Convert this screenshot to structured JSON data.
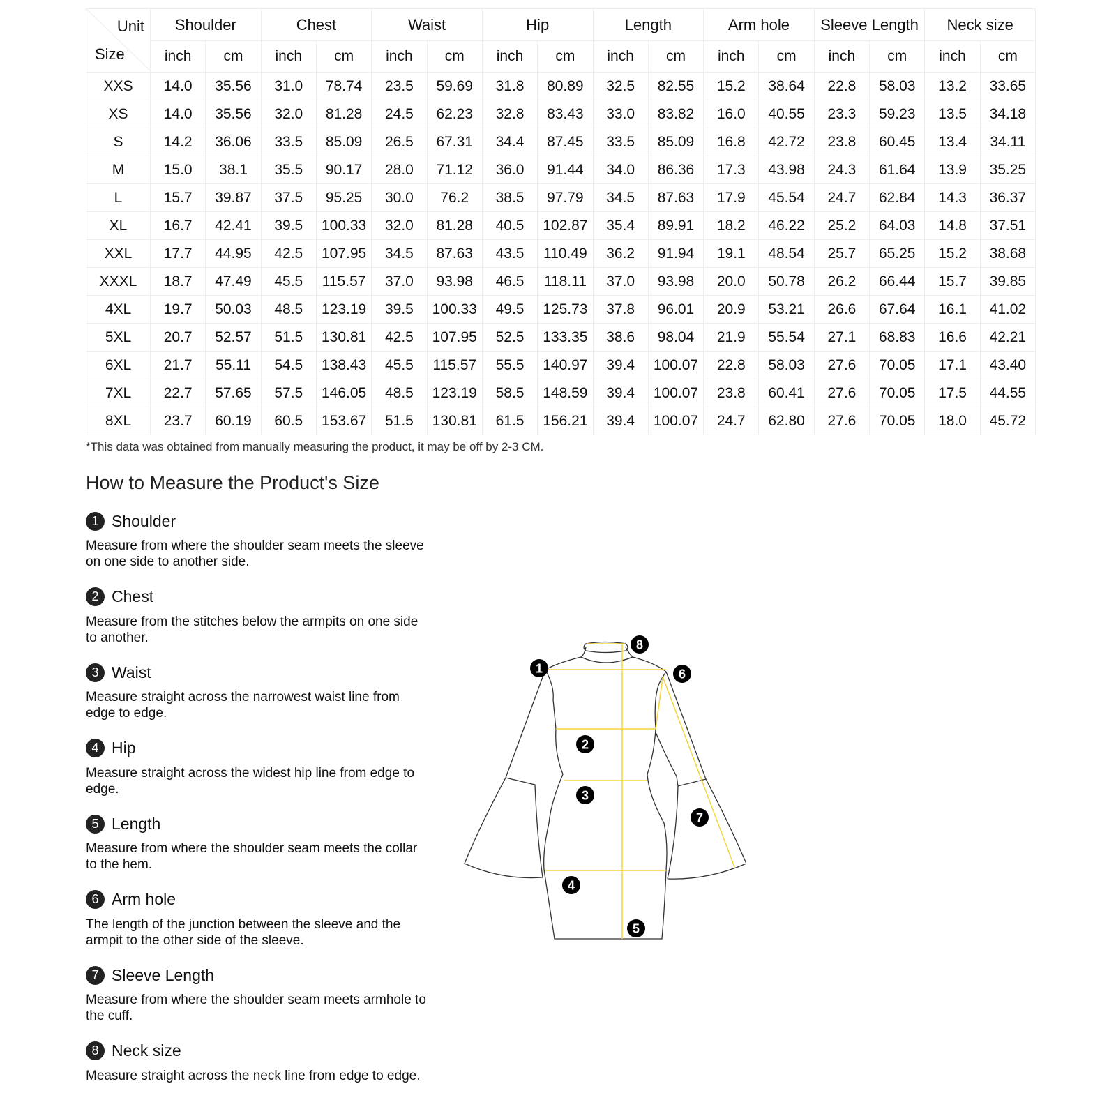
{
  "table": {
    "corner_unit": "Unit",
    "corner_size": "Size",
    "groups": [
      "Shoulder",
      "Chest",
      "Waist",
      "Hip",
      "Length",
      "Arm hole",
      "Sleeve Length",
      "Neck size"
    ],
    "units": [
      "inch",
      "cm"
    ],
    "rows": [
      [
        "XXS",
        "14.0",
        "35.56",
        "31.0",
        "78.74",
        "23.5",
        "59.69",
        "31.8",
        "80.89",
        "32.5",
        "82.55",
        "15.2",
        "38.64",
        "22.8",
        "58.03",
        "13.2",
        "33.65"
      ],
      [
        "XS",
        "14.0",
        "35.56",
        "32.0",
        "81.28",
        "24.5",
        "62.23",
        "32.8",
        "83.43",
        "33.0",
        "83.82",
        "16.0",
        "40.55",
        "23.3",
        "59.23",
        "13.5",
        "34.18"
      ],
      [
        "S",
        "14.2",
        "36.06",
        "33.5",
        "85.09",
        "26.5",
        "67.31",
        "34.4",
        "87.45",
        "33.5",
        "85.09",
        "16.8",
        "42.72",
        "23.8",
        "60.45",
        "13.4",
        "34.11"
      ],
      [
        "M",
        "15.0",
        "38.1",
        "35.5",
        "90.17",
        "28.0",
        "71.12",
        "36.0",
        "91.44",
        "34.0",
        "86.36",
        "17.3",
        "43.98",
        "24.3",
        "61.64",
        "13.9",
        "35.25"
      ],
      [
        "L",
        "15.7",
        "39.87",
        "37.5",
        "95.25",
        "30.0",
        "76.2",
        "38.5",
        "97.79",
        "34.5",
        "87.63",
        "17.9",
        "45.54",
        "24.7",
        "62.84",
        "14.3",
        "36.37"
      ],
      [
        "XL",
        "16.7",
        "42.41",
        "39.5",
        "100.33",
        "32.0",
        "81.28",
        "40.5",
        "102.87",
        "35.4",
        "89.91",
        "18.2",
        "46.22",
        "25.2",
        "64.03",
        "14.8",
        "37.51"
      ],
      [
        "XXL",
        "17.7",
        "44.95",
        "42.5",
        "107.95",
        "34.5",
        "87.63",
        "43.5",
        "110.49",
        "36.2",
        "91.94",
        "19.1",
        "48.54",
        "25.7",
        "65.25",
        "15.2",
        "38.68"
      ],
      [
        "XXXL",
        "18.7",
        "47.49",
        "45.5",
        "115.57",
        "37.0",
        "93.98",
        "46.5",
        "118.11",
        "37.0",
        "93.98",
        "20.0",
        "50.78",
        "26.2",
        "66.44",
        "15.7",
        "39.85"
      ],
      [
        "4XL",
        "19.7",
        "50.03",
        "48.5",
        "123.19",
        "39.5",
        "100.33",
        "49.5",
        "125.73",
        "37.8",
        "96.01",
        "20.9",
        "53.21",
        "26.6",
        "67.64",
        "16.1",
        "41.02"
      ],
      [
        "5XL",
        "20.7",
        "52.57",
        "51.5",
        "130.81",
        "42.5",
        "107.95",
        "52.5",
        "133.35",
        "38.6",
        "98.04",
        "21.9",
        "55.54",
        "27.1",
        "68.83",
        "16.6",
        "42.21"
      ],
      [
        "6XL",
        "21.7",
        "55.11",
        "54.5",
        "138.43",
        "45.5",
        "115.57",
        "55.5",
        "140.97",
        "39.4",
        "100.07",
        "22.8",
        "58.03",
        "27.6",
        "70.05",
        "17.1",
        "43.40"
      ],
      [
        "7XL",
        "22.7",
        "57.65",
        "57.5",
        "146.05",
        "48.5",
        "123.19",
        "58.5",
        "148.59",
        "39.4",
        "100.07",
        "23.8",
        "60.41",
        "27.6",
        "70.05",
        "17.5",
        "44.55"
      ],
      [
        "8XL",
        "23.7",
        "60.19",
        "60.5",
        "153.67",
        "51.5",
        "130.81",
        "61.5",
        "156.21",
        "39.4",
        "100.07",
        "24.7",
        "62.80",
        "27.6",
        "70.05",
        "18.0",
        "45.72"
      ]
    ]
  },
  "note": "*This data was obtained from manually measuring the product, it may be off by 2-3 CM.",
  "howto": {
    "title": "How to Measure the Product's Size",
    "items": [
      {
        "num": "1",
        "title": "Shoulder",
        "desc": "Measure from where the shoulder seam meets the sleeve on one side to another side."
      },
      {
        "num": "2",
        "title": "Chest",
        "desc": "Measure from the stitches below the armpits on one side to another."
      },
      {
        "num": "3",
        "title": "Waist",
        "desc": "Measure straight across the narrowest waist line from edge to edge."
      },
      {
        "num": "4",
        "title": "Hip",
        "desc": "Measure straight across the widest hip line from edge to edge."
      },
      {
        "num": "5",
        "title": "Length",
        "desc": "Measure from where the shoulder seam meets the collar to the hem."
      },
      {
        "num": "6",
        "title": "Arm hole",
        "desc": "The length of the junction between the sleeve and the armpit to the other side of the sleeve."
      },
      {
        "num": "7",
        "title": "Sleeve Length",
        "desc": "Measure from where the shoulder seam meets armhole to the cuff."
      },
      {
        "num": "8",
        "title": "Neck size",
        "desc": "Measure straight across the neck line from edge to edge."
      }
    ]
  },
  "diagram": {
    "markers": [
      "1",
      "2",
      "3",
      "4",
      "5",
      "6",
      "7",
      "8"
    ],
    "line_color": "#f5d33a",
    "outline_color": "#333333"
  }
}
